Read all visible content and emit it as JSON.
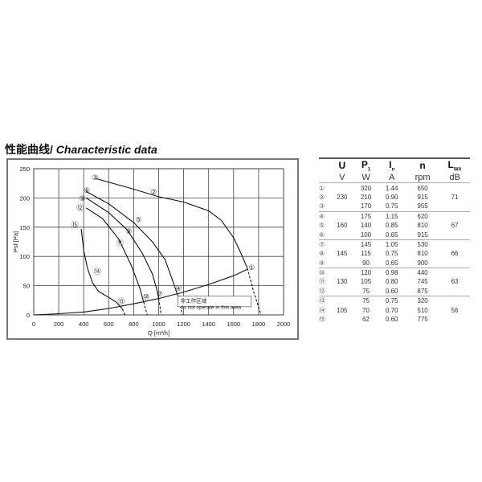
{
  "title_cn": "性能曲线/ ",
  "title_en": "Characteristic data",
  "chart_data": {
    "type": "line",
    "xlabel": "Q [m³/h]",
    "ylabel": "Psf [Pa]",
    "xlim": [
      0,
      2000
    ],
    "ylim": [
      0,
      250
    ],
    "xticks": [
      0,
      200,
      400,
      600,
      800,
      1000,
      1200,
      1400,
      1600,
      1800,
      2000
    ],
    "yticks": [
      0,
      50,
      100,
      150,
      200,
      250
    ],
    "grid": true,
    "series": [
      {
        "labels": [
          "③",
          "②",
          "①"
        ],
        "points": [
          [
            500,
            233
          ],
          [
            800,
            215
          ],
          [
            1000,
            202
          ],
          [
            1200,
            193
          ],
          [
            1400,
            178
          ],
          [
            1500,
            162
          ],
          [
            1600,
            132
          ],
          [
            1660,
            105
          ],
          [
            1710,
            80
          ]
        ],
        "dashed": [
          [
            1710,
            80
          ],
          [
            1760,
            40
          ],
          [
            1820,
            0
          ]
        ]
      },
      {
        "labels": [
          "⑥",
          "⑤",
          "④"
        ],
        "points": [
          [
            420,
            211
          ],
          [
            600,
            190
          ],
          [
            800,
            158
          ],
          [
            950,
            125
          ],
          [
            1050,
            95
          ],
          [
            1110,
            60
          ],
          [
            1150,
            35
          ]
        ],
        "dashed": [
          [
            1150,
            35
          ],
          [
            1175,
            15
          ],
          [
            1190,
            0
          ]
        ]
      },
      {
        "labels": [
          "⑨",
          "⑧",
          "⑦"
        ],
        "points": [
          [
            420,
            200
          ],
          [
            600,
            175
          ],
          [
            750,
            145
          ],
          [
            870,
            105
          ],
          [
            950,
            70
          ],
          [
            990,
            40
          ],
          [
            1000,
            28
          ]
        ],
        "dashed": [
          [
            1000,
            28
          ],
          [
            1012,
            12
          ],
          [
            1020,
            0
          ]
        ]
      },
      {
        "labels": [
          "⑫",
          "⑪",
          "⑩"
        ],
        "points": [
          [
            420,
            183
          ],
          [
            550,
            165
          ],
          [
            680,
            130
          ],
          [
            780,
            85
          ],
          [
            850,
            45
          ],
          [
            880,
            22
          ]
        ],
        "dashed": [
          [
            880,
            22
          ],
          [
            895,
            10
          ],
          [
            910,
            0
          ]
        ]
      },
      {
        "labels": [
          "⑮",
          "⑭",
          "⑬"
        ],
        "points": [
          [
            380,
            147
          ],
          [
            400,
            110
          ],
          [
            430,
            80
          ],
          [
            470,
            55
          ],
          [
            520,
            40
          ],
          [
            600,
            30
          ],
          [
            660,
            22
          ],
          [
            710,
            10
          ]
        ],
        "dashed": [
          [
            710,
            10
          ],
          [
            720,
            5
          ],
          [
            730,
            0
          ]
        ]
      },
      {
        "labels": [],
        "points": [
          [
            0,
            0
          ],
          [
            200,
            2
          ],
          [
            400,
            5
          ],
          [
            600,
            11
          ],
          [
            800,
            19
          ],
          [
            1000,
            28
          ],
          [
            1200,
            39
          ],
          [
            1400,
            52
          ],
          [
            1600,
            67
          ],
          [
            1710,
            78
          ]
        ],
        "dashed": []
      }
    ],
    "point_labels": [
      {
        "t": "①",
        "x": 1745,
        "y": 81
      },
      {
        "t": "②",
        "x": 960,
        "y": 210
      },
      {
        "t": "③",
        "x": 490,
        "y": 235
      },
      {
        "t": "④",
        "x": 1160,
        "y": 45
      },
      {
        "t": "⑤",
        "x": 840,
        "y": 163
      },
      {
        "t": "⑥",
        "x": 425,
        "y": 213
      },
      {
        "t": "⑦",
        "x": 1010,
        "y": 36
      },
      {
        "t": "⑧",
        "x": 760,
        "y": 143
      },
      {
        "t": "⑨",
        "x": 390,
        "y": 199
      },
      {
        "t": "⑩",
        "x": 900,
        "y": 31
      },
      {
        "t": "⑪",
        "x": 690,
        "y": 123
      },
      {
        "t": "⑫",
        "x": 370,
        "y": 183
      },
      {
        "t": "⑬",
        "x": 700,
        "y": 23
      },
      {
        "t": "⑭",
        "x": 510,
        "y": 74
      },
      {
        "t": "⑮",
        "x": 330,
        "y": 154
      }
    ],
    "annotation": {
      "line1": "非工作区域",
      "line2": "do not operate in this area"
    }
  },
  "table": {
    "headers": [
      {
        "sym": "U",
        "unit": "V"
      },
      {
        "sym": "P",
        "sub": "1",
        "unit": "W"
      },
      {
        "sym": "I",
        "sub": "n",
        "unit": "A"
      },
      {
        "sym": "n",
        "unit": "rpm"
      },
      {
        "sym": "L",
        "sub": "WA",
        "unit": "dB"
      }
    ],
    "groups": [
      {
        "U": "230",
        "L": "71",
        "rows": [
          [
            "①",
            "320",
            "1.44",
            "650"
          ],
          [
            "②",
            "210",
            "0.90",
            "915"
          ],
          [
            "③",
            "170",
            "0.75",
            "955"
          ]
        ]
      },
      {
        "U": "160",
        "L": "67",
        "rows": [
          [
            "④",
            "175",
            "1.15",
            "620"
          ],
          [
            "⑤",
            "140",
            "0.85",
            "810"
          ],
          [
            "⑥",
            "100",
            "0.65",
            "915"
          ]
        ]
      },
      {
        "U": "145",
        "L": "66",
        "rows": [
          [
            "⑦",
            "145",
            "1.05",
            "530"
          ],
          [
            "⑧",
            "115",
            "0.75",
            "810"
          ],
          [
            "⑨",
            "90",
            "0.65",
            "900"
          ]
        ]
      },
      {
        "U": "130",
        "L": "63",
        "rows": [
          [
            "⑩",
            "120",
            "0.98",
            "440"
          ],
          [
            "⑪",
            "105",
            "0.80",
            "745"
          ],
          [
            "⑫",
            "75",
            "0.60",
            "875"
          ]
        ]
      },
      {
        "U": "105",
        "L": "56",
        "rows": [
          [
            "⑬",
            "75",
            "0.75",
            "320"
          ],
          [
            "⑭",
            "70",
            "0.70",
            "510"
          ],
          [
            "⑮",
            "62",
            "0.60",
            "775"
          ]
        ]
      }
    ]
  }
}
